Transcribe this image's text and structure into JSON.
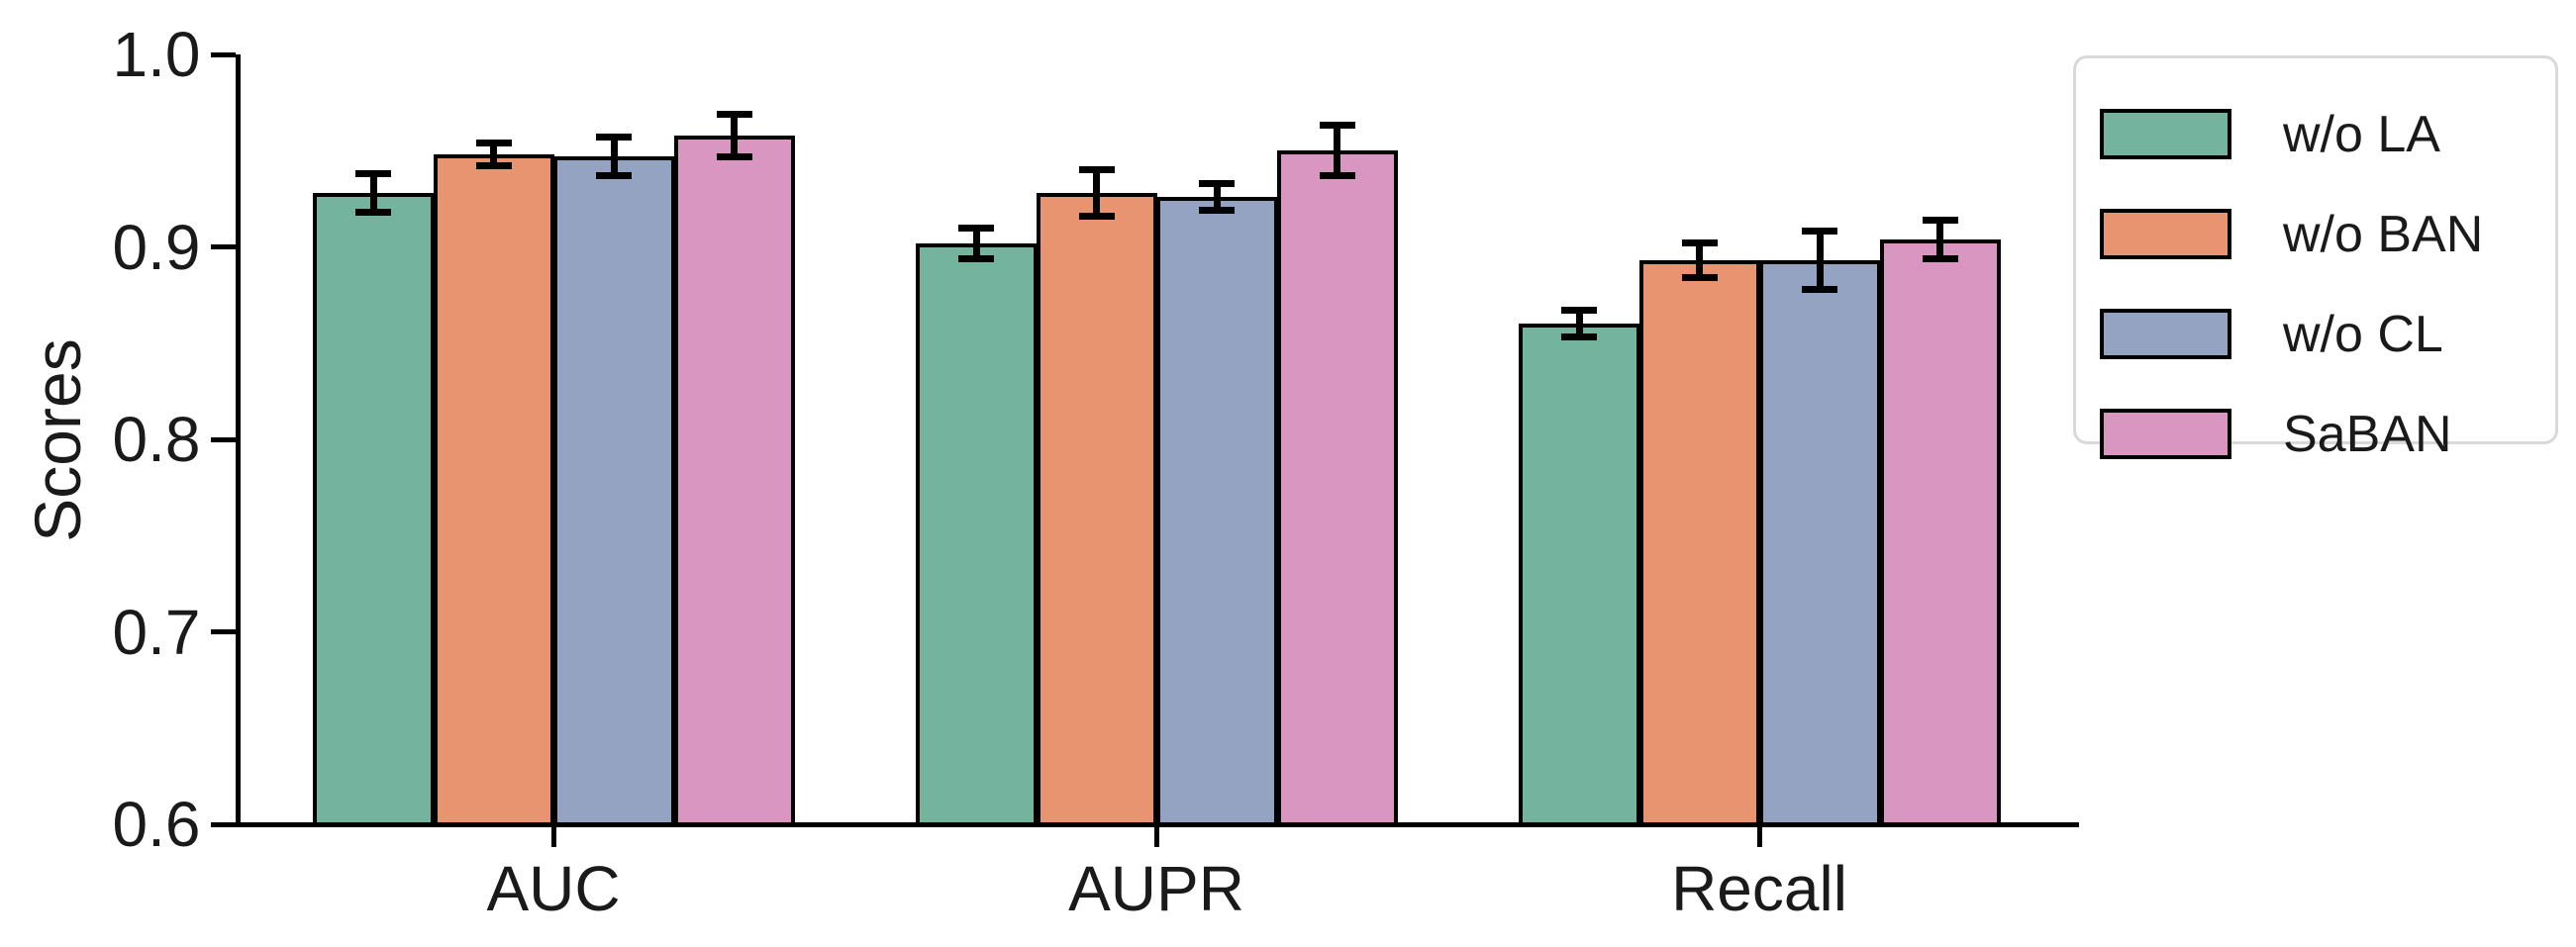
{
  "figure": {
    "background": "#ffffff",
    "text_color": "#1a1a1a",
    "axis_color": "#000000",
    "legend_border_color": "#d9d9d9"
  },
  "chart_data": {
    "type": "bar",
    "title": "",
    "ylabel": "Scores",
    "xlabel": "",
    "categories": [
      "AUC",
      "AUPR",
      "Recall"
    ],
    "series": [
      {
        "name": "w/o LA",
        "color": "#74b49e",
        "values": [
          0.928,
          0.902,
          0.86
        ],
        "errors": [
          0.01,
          0.008,
          0.007
        ]
      },
      {
        "name": "w/o BAN",
        "color": "#e89471",
        "values": [
          0.948,
          0.928,
          0.893
        ],
        "errors": [
          0.006,
          0.012,
          0.009
        ]
      },
      {
        "name": "w/o CL",
        "color": "#94a3c2",
        "values": [
          0.947,
          0.926,
          0.893
        ],
        "errors": [
          0.01,
          0.007,
          0.015
        ]
      },
      {
        "name": "SaBAN",
        "color": "#d896c0",
        "values": [
          0.958,
          0.95,
          0.904
        ],
        "errors": [
          0.011,
          0.013,
          0.01
        ]
      }
    ],
    "ylim": [
      0.6,
      1.0
    ],
    "yticks": [
      "1.0",
      "0.9",
      "0.8",
      "0.7",
      "0.6"
    ],
    "grid": false,
    "legend_position": "upper-right-outside",
    "bar_edge_color": "#000000",
    "error_bar_color": "#000000"
  }
}
